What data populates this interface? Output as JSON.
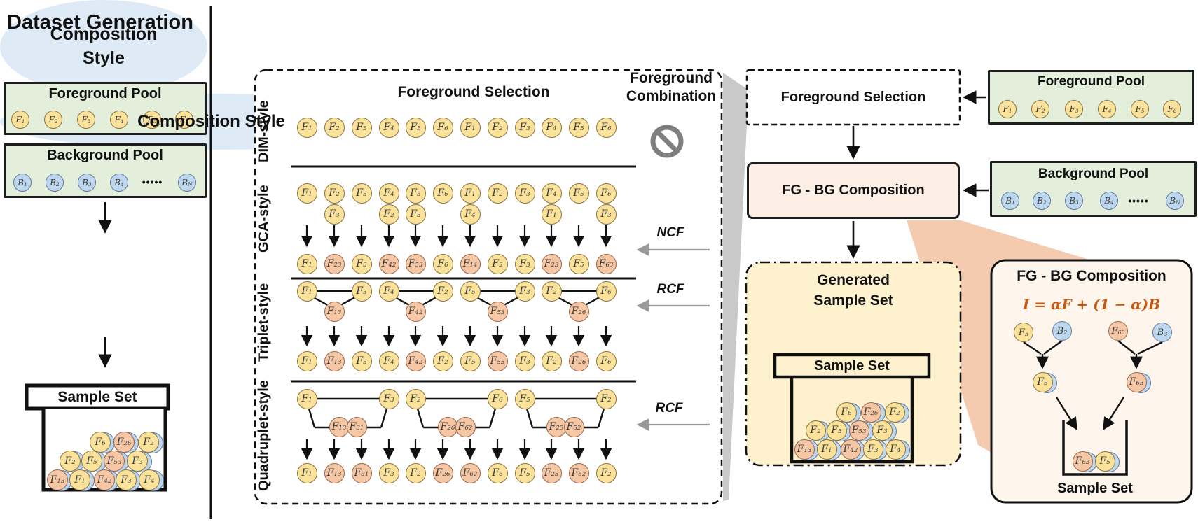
{
  "colors": {
    "yellow": "#FBE29B",
    "pink": "#F6C7A5",
    "blue": "#BDD7EE",
    "green_pool": "#E3EFDA",
    "ellipse_blue": "#DEEBF7",
    "generated_yellow": "#FDF1CE",
    "fgbg_pink": "#FDEFE6",
    "detail_cream": "#FEF5ED",
    "formula_orange": "#C45911",
    "funnel_gray": "#C9C9C9",
    "funnel_pink": "#F5CBB0"
  },
  "left": {
    "title": "Dataset Generation",
    "fg_pool": {
      "label": "Foreground Pool",
      "items": [
        "F1",
        "F2",
        "F3",
        "F4",
        "F5",
        "F6"
      ]
    },
    "bg_pool": {
      "label": "Background Pool",
      "items": [
        "B1",
        "B2",
        "B3",
        "B4",
        "BN"
      ],
      "dots": "•••••"
    },
    "ellipse": "Composition Style",
    "sample_set": {
      "label": "Sample Set",
      "rows": [
        [
          {
            "l": "F6",
            "c": "y"
          },
          {
            "l": "F26",
            "c": "p"
          },
          {
            "l": "F2",
            "c": "y"
          }
        ],
        [
          {
            "l": "F2",
            "c": "y"
          },
          {
            "l": "F5",
            "c": "y"
          },
          {
            "l": "F53",
            "c": "p"
          },
          {
            "l": "F3",
            "c": "y"
          }
        ],
        [
          {
            "l": "F13",
            "c": "p"
          },
          {
            "l": "F1",
            "c": "y"
          },
          {
            "l": "F42",
            "c": "p"
          },
          {
            "l": "F3",
            "c": "y"
          },
          {
            "l": "F4",
            "c": "y"
          }
        ]
      ]
    }
  },
  "mid": {
    "headers": {
      "selection": "Foreground Selection",
      "combination": "Foreground Combination"
    },
    "row_labels": [
      "DIM-style",
      "GCA-style",
      "Triplet-style",
      "Quadruplet-style"
    ],
    "ncf_label": "NCF",
    "rcf_label": "RCF",
    "dim_row": [
      "F1",
      "F2",
      "F3",
      "F4",
      "F5",
      "F6",
      "F1",
      "F2",
      "F3",
      "F4",
      "F5",
      "F6"
    ],
    "gca_top": [
      "F1",
      "F2",
      "F3",
      "F4",
      "F5",
      "F6",
      "F1",
      "F2",
      "F3",
      "F4",
      "F5",
      "F6"
    ],
    "gca_second": [
      {
        "col": 1,
        "l": "F3"
      },
      {
        "col": 3,
        "l": "F2"
      },
      {
        "col": 4,
        "l": "F3"
      },
      {
        "col": 6,
        "l": "F4"
      },
      {
        "col": 9,
        "l": "F1"
      },
      {
        "col": 11,
        "l": "F3"
      }
    ],
    "gca_result": [
      {
        "l": "F1",
        "c": "y"
      },
      {
        "l": "F23",
        "c": "p"
      },
      {
        "l": "F3",
        "c": "y"
      },
      {
        "l": "F42",
        "c": "p"
      },
      {
        "l": "F53",
        "c": "p"
      },
      {
        "l": "F6",
        "c": "y"
      },
      {
        "l": "F14",
        "c": "p"
      },
      {
        "l": "F2",
        "c": "y"
      },
      {
        "l": "F3",
        "c": "y"
      },
      {
        "l": "F23",
        "c": "p"
      },
      {
        "l": "F5",
        "c": "y"
      },
      {
        "l": "F63",
        "c": "p"
      }
    ],
    "triplet_groups": [
      {
        "left": "F1",
        "mid": "F13",
        "right": "F3"
      },
      {
        "left": "F4",
        "mid": "F42",
        "right": "F2"
      },
      {
        "left": "F5",
        "mid": "F53",
        "right": "F3"
      },
      {
        "left": "F2",
        "mid": "F26",
        "right": "F6"
      }
    ],
    "triplet_result": [
      {
        "l": "F1",
        "c": "y"
      },
      {
        "l": "F13",
        "c": "p"
      },
      {
        "l": "F3",
        "c": "y"
      },
      {
        "l": "F4",
        "c": "y"
      },
      {
        "l": "F42",
        "c": "p"
      },
      {
        "l": "F2",
        "c": "y"
      },
      {
        "l": "F5",
        "c": "y"
      },
      {
        "l": "F53",
        "c": "p"
      },
      {
        "l": "F3",
        "c": "y"
      },
      {
        "l": "F2",
        "c": "y"
      },
      {
        "l": "F26",
        "c": "p"
      },
      {
        "l": "F6",
        "c": "y"
      }
    ],
    "quad_groups": [
      {
        "left": "F1",
        "mids": [
          "F13",
          "F31"
        ],
        "right": "F3"
      },
      {
        "left": "F2",
        "mids": [
          "F26",
          "F62"
        ],
        "right": "F6"
      },
      {
        "left": "F5",
        "mids": [
          "F25",
          "F52"
        ],
        "right": "F2"
      }
    ],
    "quad_result": [
      {
        "l": "F1",
        "c": "y"
      },
      {
        "l": "F13",
        "c": "p"
      },
      {
        "l": "F31",
        "c": "p"
      },
      {
        "l": "F3",
        "c": "y"
      },
      {
        "l": "F2",
        "c": "y"
      },
      {
        "l": "F26",
        "c": "p"
      },
      {
        "l": "F62",
        "c": "p"
      },
      {
        "l": "F6",
        "c": "y"
      },
      {
        "l": "F5",
        "c": "y"
      },
      {
        "l": "F25",
        "c": "p"
      },
      {
        "l": "F52",
        "c": "p"
      },
      {
        "l": "F2",
        "c": "y"
      }
    ]
  },
  "right": {
    "ellipse": "Composition Style",
    "fg_selection": "Foreground Selection",
    "fg_pool": {
      "label": "Foreground Pool",
      "items": [
        "F1",
        "F2",
        "F3",
        "F4",
        "F5",
        "F6"
      ]
    },
    "bg_pool": {
      "label": "Background Pool",
      "items": [
        "B1",
        "B2",
        "B3",
        "B4",
        "BN"
      ],
      "dots": "•••••"
    },
    "fgbg_label": "FG - BG Composition",
    "generated": {
      "title": "Generated Sample Set",
      "sample_label": "Sample Set",
      "rows": [
        [
          {
            "l": "F6",
            "c": "y"
          },
          {
            "l": "F26",
            "c": "p"
          },
          {
            "l": "F2",
            "c": "y"
          }
        ],
        [
          {
            "l": "F2",
            "c": "y"
          },
          {
            "l": "F5",
            "c": "y"
          },
          {
            "l": "F53",
            "c": "p"
          },
          {
            "l": "F3",
            "c": "y"
          }
        ],
        [
          {
            "l": "F13",
            "c": "p"
          },
          {
            "l": "F1",
            "c": "y"
          },
          {
            "l": "F42",
            "c": "p"
          },
          {
            "l": "F3",
            "c": "y"
          },
          {
            "l": "F4",
            "c": "y"
          }
        ]
      ]
    },
    "detail": {
      "title": "FG - BG Composition",
      "formula": "I = αF + (1 − α)B",
      "pairs": [
        {
          "fg": "F5",
          "fg_c": "y",
          "bg": "B2",
          "out": "F5",
          "out_c": "y"
        },
        {
          "fg": "F63",
          "fg_c": "p",
          "bg": "B3",
          "out": "F63",
          "out_c": "p"
        }
      ],
      "basket": [
        {
          "l": "F63",
          "c": "p"
        },
        {
          "l": "F5",
          "c": "y"
        }
      ],
      "sample_label": "Sample Set"
    }
  }
}
